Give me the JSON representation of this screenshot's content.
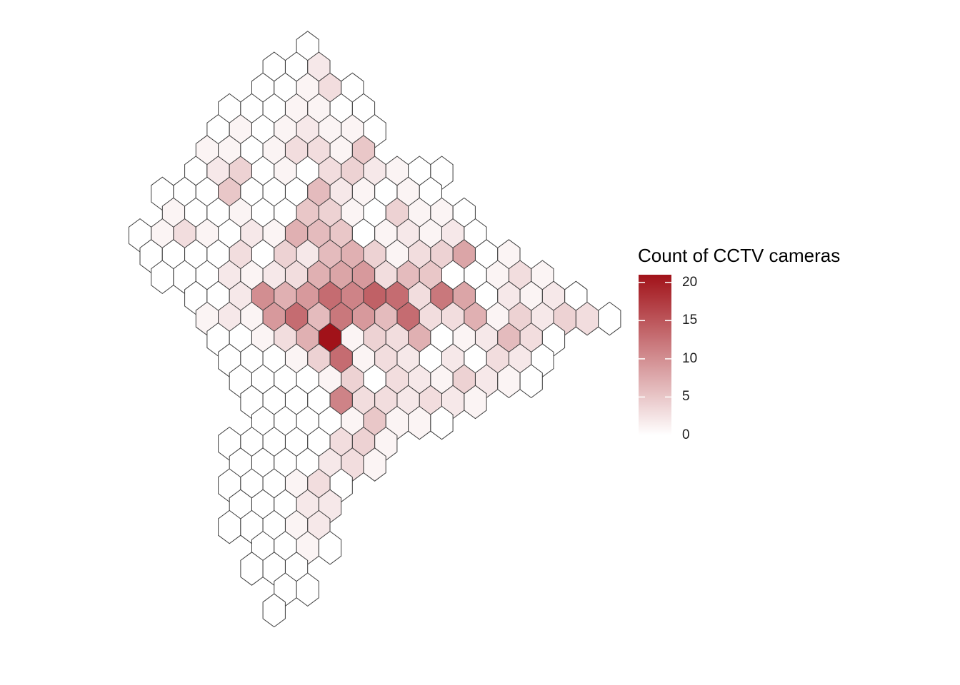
{
  "legend": {
    "title": "Count of CCTV cameras",
    "ticks": [
      {
        "value": 0,
        "label": "0"
      },
      {
        "value": 5,
        "label": "5"
      },
      {
        "value": 10,
        "label": "10"
      },
      {
        "value": 15,
        "label": "15"
      },
      {
        "value": 20,
        "label": "20"
      }
    ],
    "range": [
      0,
      21
    ]
  },
  "colors": {
    "low": "#ffffff",
    "high": "#a11219",
    "hex_stroke": "#3d3d3d"
  },
  "map_data": {
    "type": "hexbin",
    "grid": {
      "columns": [
        "c0",
        "c1",
        "c2",
        "c3",
        "c4",
        "c5",
        "c6",
        "c7",
        "c8",
        "c9",
        "c10",
        "c11",
        "c12",
        "c13",
        "c14",
        "c15",
        "c16",
        "c17",
        "c18",
        "c19",
        "c20",
        "c21"
      ],
      "rows": 28
    },
    "rows": [
      {
        "row": 0,
        "start": 8,
        "counts": [
          0
        ]
      },
      {
        "row": 1,
        "start": 7,
        "counts": [
          0,
          0,
          2
        ]
      },
      {
        "row": 2,
        "start": 6,
        "counts": [
          0,
          0,
          1,
          3,
          0
        ]
      },
      {
        "row": 3,
        "start": 5,
        "counts": [
          0,
          0,
          0,
          1,
          1,
          0,
          0
        ]
      },
      {
        "row": 4,
        "start": 4,
        "counts": [
          0,
          1,
          0,
          1,
          2,
          1,
          1,
          0
        ]
      },
      {
        "row": 5,
        "start": 4,
        "counts": [
          1,
          1,
          0,
          1,
          3,
          3,
          1,
          5
        ]
      },
      {
        "row": 6,
        "start": 3,
        "counts": [
          0,
          2,
          4,
          0,
          1,
          0,
          3,
          4,
          2,
          1,
          0,
          0
        ]
      },
      {
        "row": 7,
        "start": 2,
        "counts": [
          0,
          0,
          0,
          5,
          0,
          0,
          0,
          6,
          2,
          1,
          0,
          1,
          0
        ]
      },
      {
        "row": 8,
        "start": 2,
        "counts": [
          1,
          0,
          0,
          1,
          0,
          0,
          5,
          4,
          1,
          0,
          4,
          1,
          1,
          0
        ]
      },
      {
        "row": 9,
        "start": 1,
        "counts": [
          0,
          1,
          3,
          1,
          0,
          2,
          1,
          7,
          6,
          5,
          0,
          1,
          2,
          1,
          2,
          0
        ]
      },
      {
        "row": 10,
        "start": 1,
        "counts": [
          0,
          0,
          0,
          0,
          3,
          0,
          4,
          2,
          6,
          7,
          4,
          1,
          3,
          4,
          8,
          0,
          1
        ]
      },
      {
        "row": 11,
        "start": 2,
        "counts": [
          0,
          0,
          0,
          2,
          1,
          2,
          3,
          7,
          8,
          9,
          3,
          6,
          5,
          0,
          0,
          1,
          3,
          1
        ]
      },
      {
        "row": 12,
        "start": 3,
        "counts": [
          0,
          0,
          2,
          10,
          7,
          9,
          13,
          11,
          14,
          13,
          3,
          12,
          8,
          0,
          2,
          1,
          2,
          0
        ]
      },
      {
        "row": 13,
        "start": 4,
        "counts": [
          1,
          2,
          1,
          9,
          13,
          6,
          12,
          9,
          6,
          13,
          3,
          3,
          7,
          1,
          4,
          2,
          4,
          3,
          0
        ]
      },
      {
        "row": 14,
        "start": 4,
        "counts": [
          0,
          0,
          1,
          3,
          7,
          21,
          1,
          4,
          3,
          7,
          0,
          1,
          2,
          6,
          3,
          0
        ]
      },
      {
        "row": 15,
        "start": 5,
        "counts": [
          0,
          0,
          0,
          1,
          4,
          13,
          1,
          3,
          2,
          0,
          2,
          0,
          3,
          2,
          0
        ]
      },
      {
        "row": 16,
        "start": 5,
        "counts": [
          0,
          0,
          0,
          0,
          1,
          4,
          0,
          3,
          2,
          1,
          4,
          2,
          1,
          0
        ]
      },
      {
        "row": 17,
        "start": 6,
        "counts": [
          0,
          0,
          0,
          0,
          11,
          3,
          3,
          2,
          3,
          2,
          1
        ]
      },
      {
        "row": 18,
        "start": 6,
        "counts": [
          0,
          0,
          0,
          0,
          1,
          5,
          1,
          1,
          0
        ]
      },
      {
        "row": 19,
        "start": 5,
        "counts": [
          0,
          0,
          0,
          0,
          0,
          3,
          4,
          1
        ]
      },
      {
        "row": 20,
        "start": 5,
        "counts": [
          0,
          0,
          0,
          0,
          2,
          3,
          1
        ]
      },
      {
        "row": 21,
        "start": 5,
        "counts": [
          0,
          0,
          0,
          1,
          3,
          0
        ]
      },
      {
        "row": 22,
        "start": 5,
        "counts": [
          0,
          0,
          0,
          2,
          2
        ]
      },
      {
        "row": 23,
        "start": 5,
        "counts": [
          0,
          0,
          0,
          1,
          2
        ]
      },
      {
        "row": 24,
        "start": 6,
        "counts": [
          0,
          0,
          1,
          0
        ]
      },
      {
        "row": 25,
        "start": 6,
        "counts": [
          0,
          0,
          0
        ]
      },
      {
        "row": 26,
        "start": 7,
        "counts": [
          0,
          0
        ]
      },
      {
        "row": 27,
        "start": 7,
        "counts": [
          0
        ]
      }
    ]
  }
}
